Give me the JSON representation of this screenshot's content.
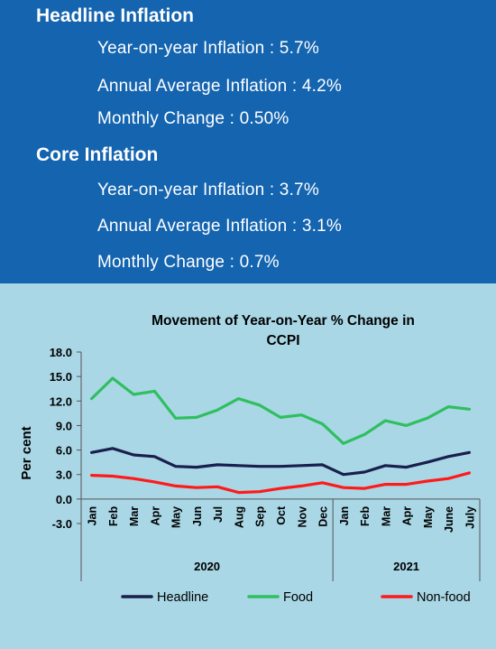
{
  "headline": {
    "title": "Headline Inflation",
    "yoy": "Year-on-year Inflation : 5.7%",
    "annual": "Annual Average Inflation : 4.2%",
    "monthly": "Monthly Change : 0.50%"
  },
  "core": {
    "title": "Core Inflation",
    "yoy": "Year-on-year Inflation : 3.7%",
    "annual": "Annual Average Inflation : 3.1%",
    "monthly": "Monthly Change : 0.7%"
  },
  "colors": {
    "panel": "#1464b0",
    "background": "#a9d7e6",
    "headline": "#1a1f4d",
    "food": "#2fbf5f",
    "nonfood": "#ff1a1a"
  },
  "chart_data": {
    "type": "line",
    "title_lines": [
      "Movement of Year-on-Year % Change in",
      "CCPI"
    ],
    "ylabel": "Per cent",
    "xlabel": "",
    "ylim": [
      -3.0,
      18.0
    ],
    "yticks": [
      18.0,
      15.0,
      12.0,
      9.0,
      6.0,
      3.0,
      0.0,
      -3.0
    ],
    "ytick_labels": [
      "18.0",
      "15.0",
      "12.0",
      "9.0",
      "6.0",
      "3.0",
      "0.0",
      "-3.0"
    ],
    "categories": [
      "Jan",
      "Feb",
      "Mar",
      "Apr",
      "May",
      "Jun",
      "Jul",
      "Aug",
      "Sep",
      "Oct",
      "Nov",
      "Dec",
      "Jan",
      "Feb",
      "Mar",
      "Apr",
      "May",
      "June",
      "July"
    ],
    "year_groups": [
      {
        "label": "2020",
        "start": 0,
        "end": 11
      },
      {
        "label": "2021",
        "start": 12,
        "end": 18
      }
    ],
    "series": [
      {
        "name": "Headline",
        "color": "#1a1f4d",
        "values": [
          5.7,
          6.2,
          5.4,
          5.2,
          4.0,
          3.9,
          4.2,
          4.1,
          4.0,
          4.0,
          4.1,
          4.2,
          3.0,
          3.3,
          4.1,
          3.9,
          4.5,
          5.2,
          5.7
        ]
      },
      {
        "name": "Food",
        "color": "#2fbf5f",
        "values": [
          12.3,
          14.8,
          12.8,
          13.2,
          9.9,
          10.0,
          10.9,
          12.3,
          11.5,
          10.0,
          10.3,
          9.2,
          6.8,
          7.9,
          9.6,
          9.0,
          9.9,
          11.3,
          11.0
        ]
      },
      {
        "name": "Non-food",
        "color": "#ff1a1a",
        "values": [
          2.9,
          2.8,
          2.5,
          2.1,
          1.6,
          1.4,
          1.5,
          0.8,
          0.9,
          1.3,
          1.6,
          2.0,
          1.4,
          1.3,
          1.8,
          1.8,
          2.2,
          2.5,
          3.2
        ]
      }
    ],
    "legend_position": "bottom"
  }
}
